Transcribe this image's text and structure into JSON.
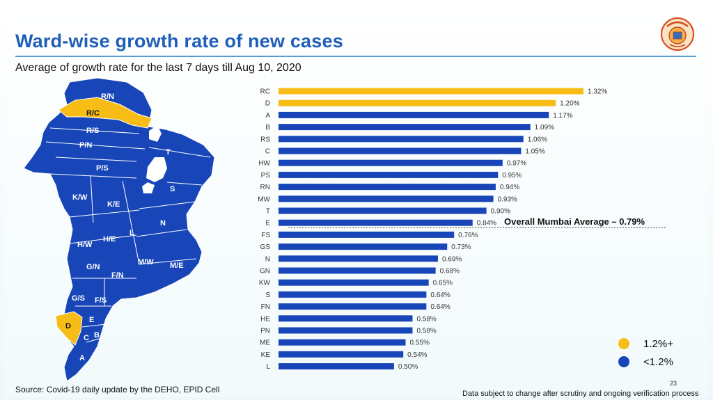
{
  "slide": {
    "title": "Ward-wise growth rate of new cases",
    "subtitle": "Average of growth rate for the last 7 days till Aug 10, 2020",
    "source": "Source: Covid-19 daily update by the DEHO, EPID Cell",
    "footnote": "Data subject to change after scrutiny and ongoing verification process",
    "page_number": "23",
    "logo_icon": "municipal-seal-icon"
  },
  "colors": {
    "title": "#1f5fb8",
    "high": "#f7bd16",
    "low": "#1846b8",
    "map_outline": "#ffffff"
  },
  "map": {
    "high_wards": [
      "R/C",
      "D"
    ],
    "ward_labels": [
      "R/N",
      "R/C",
      "R/S",
      "P/N",
      "P/S",
      "K/W",
      "K/E",
      "H/W",
      "H/E",
      "G/N",
      "F/N",
      "G/S",
      "F/S",
      "D",
      "E",
      "C",
      "B",
      "A",
      "L",
      "N",
      "M/W",
      "M/E",
      "S",
      "T"
    ]
  },
  "chart_data": {
    "type": "bar",
    "orientation": "horizontal",
    "title": "Ward-wise growth rate of new cases",
    "subtitle": "Average of growth rate for the last 7 days till Aug 10, 2020",
    "categories": [
      "RC",
      "D",
      "A",
      "B",
      "RS",
      "C",
      "HW",
      "PS",
      "RN",
      "MW",
      "T",
      "E",
      "FS",
      "GS",
      "N",
      "GN",
      "KW",
      "S",
      "FN",
      "HE",
      "PN",
      "ME",
      "KE",
      "L"
    ],
    "values": [
      1.32,
      1.2,
      1.17,
      1.09,
      1.06,
      1.05,
      0.97,
      0.95,
      0.94,
      0.93,
      0.9,
      0.84,
      0.76,
      0.73,
      0.69,
      0.68,
      0.65,
      0.64,
      0.64,
      0.58,
      0.58,
      0.55,
      0.54,
      0.5
    ],
    "value_labels": [
      "1.32%",
      "1.20%",
      "1.17%",
      "1.09%",
      "1.06%",
      "1.05%",
      "0.97%",
      "0.95%",
      "0.94%",
      "0.93%",
      "0.90%",
      "0.84%",
      "0.76%",
      "0.73%",
      "0.69%",
      "0.68%",
      "0.65%",
      "0.64%",
      "0.64%",
      "0.58%",
      "0.58%",
      "0.55%",
      "0.54%",
      "0.50%"
    ],
    "threshold": 1.2,
    "xlim": [
      0,
      1.32
    ],
    "xlabel": "",
    "ylabel": "",
    "grid": false,
    "reference_line": {
      "value": 0.79,
      "label": "Overall Mumbai Average – 0.79%"
    },
    "legend": [
      {
        "label": "1.2%+",
        "color": "#f7bd16"
      },
      {
        "label": "<1.2%",
        "color": "#1846b8"
      }
    ],
    "legend_position": "bottom-right"
  }
}
